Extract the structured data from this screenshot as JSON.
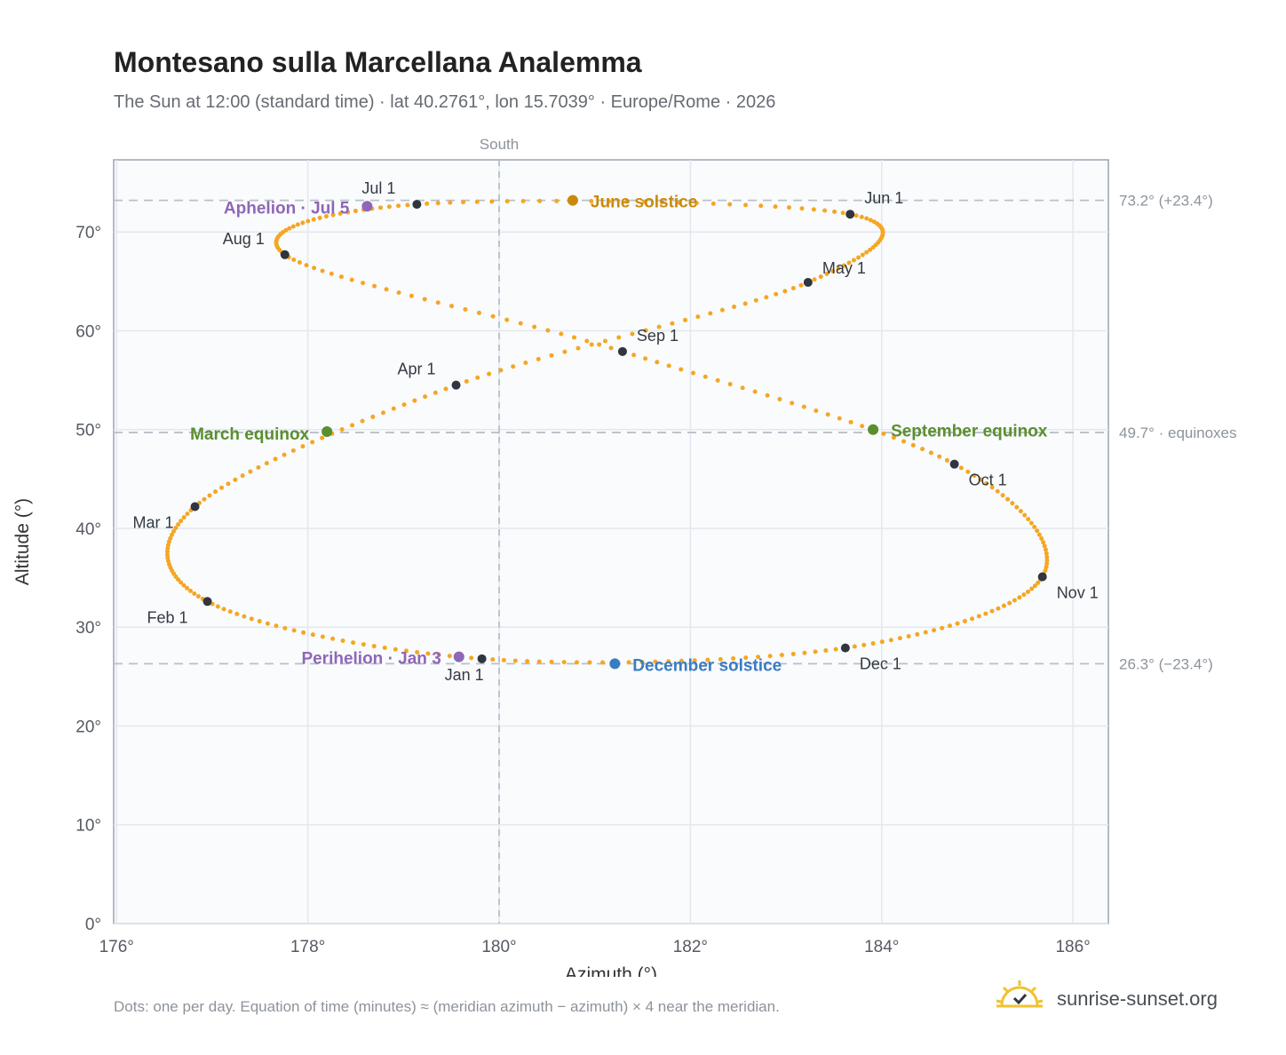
{
  "header": {
    "title": "Montesano sulla Marcellana Analemma",
    "subtitle": "The Sun at 12:00 (standard time) · lat 40.2761°, lon 15.7039° · Europe/Rome · 2026"
  },
  "footer": {
    "note": "Dots: one per day. Equation of time (minutes) ≈ (meridian azimuth − azimuth) × 4 near the meridian.",
    "brand": "sunrise-sunset.org"
  },
  "colors": {
    "path": "#f5a623",
    "month_marker": "#2f3640",
    "june_solstice": "#c98a0c",
    "december_solstice": "#3a7cc3",
    "equinox": "#5a8f2e",
    "apsis": "#8e67b5",
    "reference_line": "#b9c0c9",
    "plot_bg": "#f9fbfd"
  },
  "chart_data": {
    "type": "scatter",
    "xlabel": "Azimuth (°)",
    "ylabel": "Altitude (°)",
    "xlim": [
      175.97,
      186.37
    ],
    "ylim": [
      0,
      77.3
    ],
    "x_ticks": [
      176,
      178,
      180,
      182,
      184,
      186
    ],
    "x_tick_labels": [
      "176°",
      "178°",
      "180°",
      "182°",
      "184°",
      "186°"
    ],
    "y_ticks": [
      0,
      10,
      20,
      30,
      40,
      50,
      60,
      70
    ],
    "y_tick_labels": [
      "0°",
      "10°",
      "20°",
      "30°",
      "40°",
      "50°",
      "60°",
      "70°"
    ],
    "grid": true,
    "meridian": {
      "azimuth": 180,
      "label": "South"
    },
    "reference_lines": [
      {
        "altitude": 73.2,
        "label": "73.2° (+23.4°)"
      },
      {
        "altitude": 49.7,
        "label": "49.7° · equinoxes"
      },
      {
        "altitude": 26.3,
        "label": "26.3° (−23.4°)"
      }
    ],
    "month_markers": [
      {
        "label": "Jan 1",
        "azimuth": 179.82,
        "altitude": 26.8
      },
      {
        "label": "Feb 1",
        "azimuth": 176.95,
        "altitude": 32.6
      },
      {
        "label": "Mar 1",
        "azimuth": 176.82,
        "altitude": 42.2
      },
      {
        "label": "Apr 1",
        "azimuth": 179.55,
        "altitude": 54.5
      },
      {
        "label": "May 1",
        "azimuth": 183.23,
        "altitude": 64.9
      },
      {
        "label": "Jun 1",
        "azimuth": 183.67,
        "altitude": 71.8
      },
      {
        "label": "Jul 1",
        "azimuth": 179.14,
        "altitude": 72.8
      },
      {
        "label": "Aug 1",
        "azimuth": 177.76,
        "altitude": 67.7
      },
      {
        "label": "Sep 1",
        "azimuth": 181.29,
        "altitude": 57.9
      },
      {
        "label": "Oct 1",
        "azimuth": 184.76,
        "altitude": 46.5
      },
      {
        "label": "Nov 1",
        "azimuth": 185.68,
        "altitude": 35.1
      },
      {
        "label": "Dec 1",
        "azimuth": 183.62,
        "altitude": 27.9
      }
    ],
    "events": [
      {
        "label": "June solstice",
        "azimuth": 180.77,
        "altitude": 73.2,
        "kind": "june"
      },
      {
        "label": "December solstice",
        "azimuth": 181.21,
        "altitude": 26.3,
        "kind": "december"
      },
      {
        "label": "March equinox",
        "azimuth": 178.2,
        "altitude": 49.8,
        "kind": "equinox"
      },
      {
        "label": "September equinox",
        "azimuth": 183.91,
        "altitude": 50.0,
        "kind": "equinox"
      },
      {
        "label": "Aphelion · Jul 5",
        "azimuth": 178.62,
        "altitude": 72.6,
        "kind": "apsis"
      },
      {
        "label": "Perihelion · Jan 3",
        "azimuth": 179.58,
        "altitude": 27.0,
        "kind": "apsis"
      }
    ]
  }
}
